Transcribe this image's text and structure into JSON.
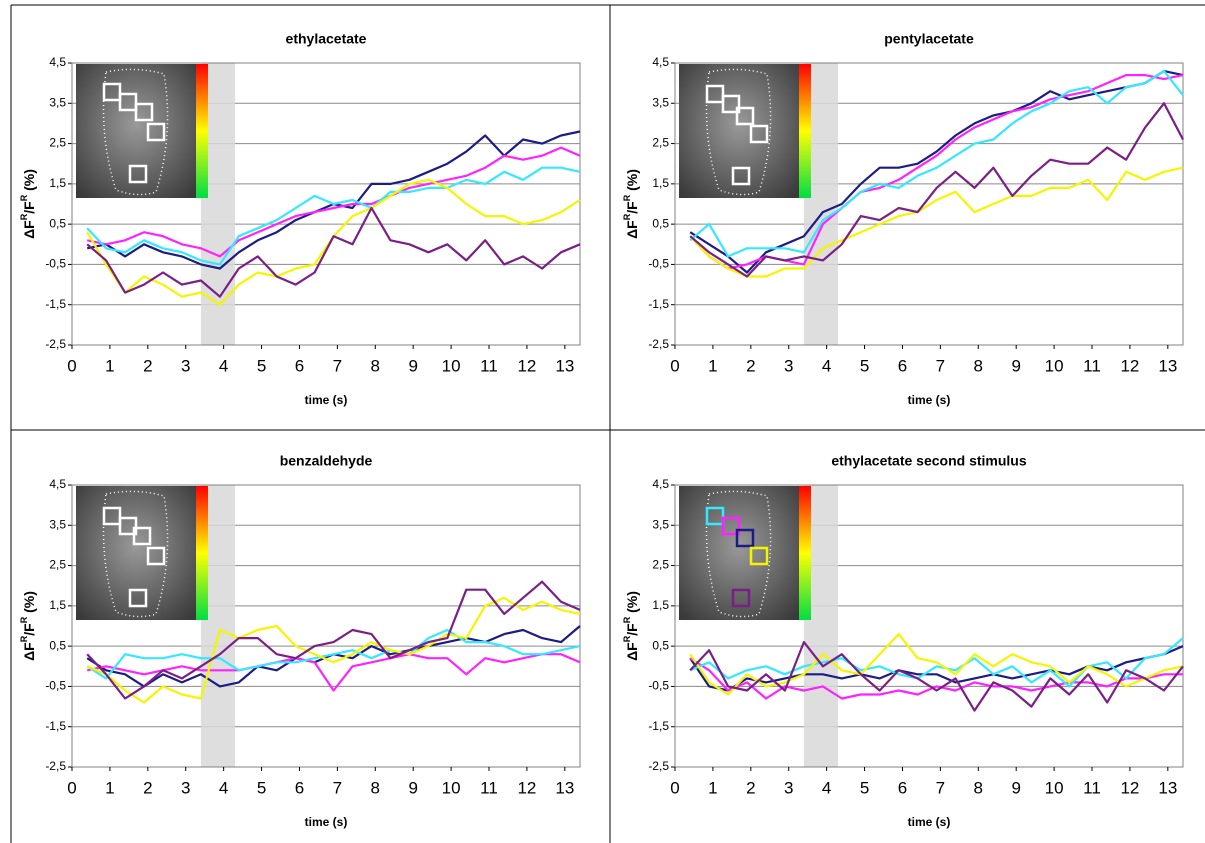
{
  "chart_data": [
    {
      "type": "line",
      "title": "ethylacetate",
      "xlabel": "time (s)",
      "ylabel": [
        "ΔF",
        "R",
        "/F",
        "R",
        " (%)"
      ],
      "xlim": [
        0,
        13.4
      ],
      "ylim": [
        -2.5,
        4.5
      ],
      "xticks": [
        0,
        1,
        2,
        3,
        4,
        5,
        6,
        7,
        8,
        9,
        10,
        11,
        12,
        13
      ],
      "yticks": [
        {
          "value": 4.5,
          "label": "4,5"
        },
        {
          "value": 3.5,
          "label": "3,5"
        },
        {
          "value": 2.5,
          "label": "2,5"
        },
        {
          "value": 1.5,
          "label": "1,5"
        },
        {
          "value": 0.5,
          "label": "0,5"
        },
        {
          "value": -0.5,
          "label": "-0,5"
        },
        {
          "value": -1.5,
          "label": "-1,5"
        },
        {
          "value": -2.5,
          "label": "-2,5"
        }
      ],
      "grid": true,
      "shade": [
        3.4,
        4.3
      ],
      "x": [
        0.4,
        0.9,
        1.4,
        1.9,
        2.4,
        2.9,
        3.4,
        3.9,
        4.4,
        4.9,
        5.4,
        5.9,
        6.4,
        6.9,
        7.4,
        7.9,
        8.4,
        8.9,
        9.4,
        9.9,
        10.4,
        10.9,
        11.4,
        11.9,
        12.4,
        12.9,
        13.4
      ],
      "series": [
        {
          "color": "#1c1c84",
          "values": [
            -0.1,
            0.0,
            -0.3,
            0.0,
            -0.2,
            -0.3,
            -0.5,
            -0.6,
            -0.2,
            0.1,
            0.3,
            0.6,
            0.8,
            1.0,
            0.9,
            1.5,
            1.5,
            1.6,
            1.8,
            2.0,
            2.3,
            2.7,
            2.2,
            2.6,
            2.5,
            2.7,
            2.8
          ]
        },
        {
          "color": "#ff22ff",
          "values": [
            0.1,
            0.0,
            0.1,
            0.3,
            0.2,
            0.0,
            -0.1,
            -0.3,
            0.1,
            0.3,
            0.5,
            0.7,
            0.8,
            0.9,
            1.0,
            1.0,
            1.2,
            1.4,
            1.5,
            1.6,
            1.7,
            1.9,
            2.2,
            2.1,
            2.2,
            2.4,
            2.2
          ]
        },
        {
          "color": "#33e8ff",
          "values": [
            0.4,
            -0.1,
            -0.2,
            0.1,
            -0.1,
            -0.2,
            -0.4,
            -0.5,
            0.2,
            0.4,
            0.6,
            0.9,
            1.2,
            1.0,
            1.1,
            0.9,
            1.3,
            1.3,
            1.4,
            1.4,
            1.6,
            1.5,
            1.8,
            1.6,
            1.9,
            1.9,
            1.8
          ]
        },
        {
          "color": "#f5f500",
          "values": [
            0.3,
            -0.5,
            -1.2,
            -0.8,
            -1.0,
            -1.3,
            -1.2,
            -1.5,
            -1.0,
            -0.7,
            -0.8,
            -0.6,
            -0.5,
            0.2,
            0.7,
            0.9,
            1.2,
            1.5,
            1.6,
            1.4,
            1.0,
            0.7,
            0.7,
            0.5,
            0.6,
            0.8,
            1.1
          ]
        },
        {
          "color": "#7a1f86",
          "values": [
            0.0,
            -0.4,
            -1.2,
            -1.0,
            -0.7,
            -1.0,
            -0.9,
            -1.3,
            -0.6,
            -0.3,
            -0.8,
            -1.0,
            -0.7,
            0.2,
            0.0,
            0.9,
            0.1,
            0.0,
            -0.2,
            0.0,
            -0.4,
            0.1,
            -0.5,
            -0.3,
            -0.6,
            -0.2,
            0.0
          ]
        }
      ]
    },
    {
      "type": "line",
      "title": "pentylacetate",
      "xlabel": "time (s)",
      "ylabel": [
        "ΔF",
        "R",
        "/F",
        "R",
        " (%)"
      ],
      "xlim": [
        0,
        13.4
      ],
      "ylim": [
        -2.5,
        4.5
      ],
      "xticks": [
        0,
        1,
        2,
        3,
        4,
        5,
        6,
        7,
        8,
        9,
        10,
        11,
        12,
        13
      ],
      "yticks": [
        {
          "value": 4.5,
          "label": "4,5"
        },
        {
          "value": 3.5,
          "label": "3,5"
        },
        {
          "value": 2.5,
          "label": "2,5"
        },
        {
          "value": 1.5,
          "label": "1,5"
        },
        {
          "value": 0.5,
          "label": "0,5"
        },
        {
          "value": -0.5,
          "label": "-0,5"
        },
        {
          "value": -1.5,
          "label": "-1,5"
        },
        {
          "value": -2.5,
          "label": "-2,5"
        }
      ],
      "grid": true,
      "shade": [
        3.4,
        4.3
      ],
      "x": [
        0.4,
        0.9,
        1.4,
        1.9,
        2.4,
        2.9,
        3.4,
        3.9,
        4.4,
        4.9,
        5.4,
        5.9,
        6.4,
        6.9,
        7.4,
        7.9,
        8.4,
        8.9,
        9.4,
        9.9,
        10.4,
        10.9,
        11.4,
        11.9,
        12.4,
        12.9,
        13.4
      ],
      "series": [
        {
          "color": "#1c1c84",
          "values": [
            0.3,
            0.0,
            -0.3,
            -0.7,
            -0.2,
            0.0,
            0.2,
            0.8,
            1.0,
            1.5,
            1.9,
            1.9,
            2.0,
            2.3,
            2.7,
            3.0,
            3.2,
            3.3,
            3.5,
            3.8,
            3.6,
            3.7,
            3.8,
            3.9,
            4.0,
            4.3,
            4.2
          ]
        },
        {
          "color": "#ff22ff",
          "values": [
            0.2,
            -0.3,
            -0.6,
            -0.5,
            -0.3,
            -0.4,
            -0.5,
            0.5,
            0.9,
            1.3,
            1.4,
            1.6,
            1.9,
            2.2,
            2.6,
            2.9,
            3.1,
            3.3,
            3.4,
            3.6,
            3.7,
            3.8,
            4.0,
            4.2,
            4.2,
            4.1,
            4.2
          ]
        },
        {
          "color": "#33e8ff",
          "values": [
            0.1,
            0.5,
            -0.3,
            -0.1,
            -0.1,
            -0.1,
            -0.2,
            0.6,
            0.9,
            1.3,
            1.5,
            1.4,
            1.7,
            1.9,
            2.2,
            2.5,
            2.6,
            3.0,
            3.3,
            3.5,
            3.8,
            3.9,
            3.5,
            3.9,
            4.0,
            4.3,
            3.7
          ]
        },
        {
          "color": "#f5f500",
          "values": [
            0.2,
            -0.3,
            -0.6,
            -0.8,
            -0.8,
            -0.6,
            -0.6,
            -0.1,
            0.1,
            0.3,
            0.5,
            0.7,
            0.8,
            1.1,
            1.3,
            0.8,
            1.0,
            1.2,
            1.2,
            1.4,
            1.4,
            1.6,
            1.1,
            1.8,
            1.6,
            1.8,
            1.9
          ]
        },
        {
          "color": "#7a1f86",
          "values": [
            0.2,
            -0.2,
            -0.5,
            -0.8,
            -0.3,
            -0.4,
            -0.3,
            -0.4,
            0.0,
            0.7,
            0.6,
            0.9,
            0.8,
            1.4,
            1.8,
            1.4,
            1.9,
            1.2,
            1.7,
            2.1,
            2.0,
            2.0,
            2.4,
            2.1,
            2.9,
            3.5,
            2.6
          ]
        }
      ]
    },
    {
      "type": "line",
      "title": "benzaldehyde",
      "xlabel": "time (s)",
      "ylabel": [
        "ΔF",
        "R",
        "/F",
        "R",
        " (%)"
      ],
      "xlim": [
        0,
        13.4
      ],
      "ylim": [
        -2.5,
        4.5
      ],
      "xticks": [
        0,
        1,
        2,
        3,
        4,
        5,
        6,
        7,
        8,
        9,
        10,
        11,
        12,
        13
      ],
      "yticks": [
        {
          "value": 4.5,
          "label": "4,5"
        },
        {
          "value": 3.5,
          "label": "3,5"
        },
        {
          "value": 2.5,
          "label": "2,5"
        },
        {
          "value": 1.5,
          "label": "1,5"
        },
        {
          "value": 0.5,
          "label": "0,5"
        },
        {
          "value": -0.5,
          "label": "-0,5"
        },
        {
          "value": -1.5,
          "label": "-1,5"
        },
        {
          "value": -2.5,
          "label": "-2,5"
        }
      ],
      "grid": true,
      "shade": [
        3.4,
        4.3
      ],
      "x": [
        0.4,
        0.9,
        1.4,
        1.9,
        2.4,
        2.9,
        3.4,
        3.9,
        4.4,
        4.9,
        5.4,
        5.9,
        6.4,
        6.9,
        7.4,
        7.9,
        8.4,
        8.9,
        9.4,
        9.9,
        10.4,
        10.9,
        11.4,
        11.9,
        12.4,
        12.9,
        13.4
      ],
      "series": [
        {
          "color": "#1c1c84",
          "values": [
            0.2,
            -0.1,
            -0.2,
            -0.5,
            -0.2,
            -0.4,
            -0.2,
            -0.5,
            -0.4,
            0.0,
            -0.1,
            0.2,
            0.1,
            0.3,
            0.2,
            0.5,
            0.3,
            0.4,
            0.5,
            0.6,
            0.7,
            0.6,
            0.8,
            0.9,
            0.7,
            0.6,
            1.0
          ]
        },
        {
          "color": "#ff22ff",
          "values": [
            -0.1,
            0.0,
            -0.1,
            -0.2,
            -0.1,
            0.0,
            -0.1,
            -0.1,
            -0.1,
            0.0,
            0.1,
            0.2,
            0.1,
            -0.6,
            0.0,
            0.1,
            0.2,
            0.3,
            0.2,
            0.2,
            -0.2,
            0.2,
            0.1,
            0.2,
            0.3,
            0.3,
            0.1
          ]
        },
        {
          "color": "#33e8ff",
          "values": [
            0.0,
            -0.3,
            0.3,
            0.2,
            0.2,
            0.3,
            0.2,
            0.2,
            -0.1,
            0.0,
            0.1,
            0.1,
            0.2,
            0.3,
            0.4,
            0.2,
            0.4,
            0.3,
            0.7,
            0.9,
            0.6,
            0.6,
            0.5,
            0.3,
            0.3,
            0.4,
            0.5
          ]
        },
        {
          "color": "#f5f500",
          "values": [
            0.0,
            -0.2,
            -0.6,
            -0.9,
            -0.5,
            -0.7,
            -0.8,
            0.9,
            0.7,
            0.9,
            1.0,
            0.5,
            0.3,
            0.1,
            0.3,
            0.6,
            0.4,
            0.3,
            0.5,
            0.8,
            0.7,
            1.5,
            1.7,
            1.4,
            1.6,
            1.4,
            1.3
          ]
        },
        {
          "color": "#7a1f86",
          "values": [
            0.3,
            -0.2,
            -0.8,
            -0.5,
            -0.1,
            -0.3,
            0.0,
            0.3,
            0.7,
            0.7,
            0.3,
            0.2,
            0.5,
            0.6,
            0.9,
            0.8,
            0.2,
            0.4,
            0.6,
            0.7,
            1.9,
            1.9,
            1.3,
            1.7,
            2.1,
            1.6,
            1.4
          ]
        }
      ]
    },
    {
      "type": "line",
      "title": "ethylacetate second stimulus",
      "xlabel": "time (s)",
      "ylabel": [
        "ΔF",
        "R",
        "/F",
        "R",
        " (%)"
      ],
      "xlim": [
        0,
        13.4
      ],
      "ylim": [
        -2.5,
        4.5
      ],
      "xticks": [
        0,
        1,
        2,
        3,
        4,
        5,
        6,
        7,
        8,
        9,
        10,
        11,
        12,
        13
      ],
      "yticks": [
        {
          "value": 4.5,
          "label": "4,5"
        },
        {
          "value": 3.5,
          "label": "3,5"
        },
        {
          "value": 2.5,
          "label": "2,5"
        },
        {
          "value": 1.5,
          "label": "1,5"
        },
        {
          "value": 0.5,
          "label": "0,5"
        },
        {
          "value": -0.5,
          "label": "-0,5"
        },
        {
          "value": -1.5,
          "label": "-1,5"
        },
        {
          "value": -2.5,
          "label": "-2,5"
        }
      ],
      "grid": true,
      "shade": [
        3.4,
        4.3
      ],
      "x": [
        0.4,
        0.9,
        1.4,
        1.9,
        2.4,
        2.9,
        3.4,
        3.9,
        4.4,
        4.9,
        5.4,
        5.9,
        6.4,
        6.9,
        7.4,
        7.9,
        8.4,
        8.9,
        9.4,
        9.9,
        10.4,
        10.9,
        11.4,
        11.9,
        12.4,
        12.9,
        13.4
      ],
      "series": [
        {
          "color": "#1c1c84",
          "values": [
            0.2,
            -0.5,
            -0.6,
            -0.3,
            -0.4,
            -0.3,
            -0.2,
            -0.2,
            -0.3,
            -0.2,
            -0.3,
            -0.1,
            -0.2,
            -0.2,
            -0.4,
            -0.3,
            -0.2,
            -0.3,
            -0.2,
            -0.1,
            -0.2,
            0.0,
            -0.1,
            0.1,
            0.2,
            0.3,
            0.5
          ]
        },
        {
          "color": "#ff22ff",
          "values": [
            0.2,
            -0.1,
            -0.6,
            -0.4,
            -0.8,
            -0.5,
            -0.6,
            -0.5,
            -0.8,
            -0.7,
            -0.7,
            -0.6,
            -0.7,
            -0.5,
            -0.6,
            -0.4,
            -0.5,
            -0.5,
            -0.6,
            -0.5,
            -0.4,
            -0.4,
            -0.5,
            -0.3,
            -0.3,
            -0.2,
            -0.2
          ]
        },
        {
          "color": "#33e8ff",
          "values": [
            -0.1,
            0.1,
            -0.3,
            -0.1,
            0.0,
            -0.2,
            0.0,
            0.1,
            0.2,
            -0.1,
            0.0,
            -0.2,
            -0.3,
            0.0,
            -0.1,
            0.2,
            -0.2,
            0.0,
            -0.4,
            -0.1,
            -0.5,
            0.0,
            0.1,
            -0.3,
            0.2,
            0.3,
            0.7
          ]
        },
        {
          "color": "#f5f500",
          "values": [
            0.3,
            -0.4,
            -0.7,
            -0.2,
            -0.5,
            -0.4,
            -0.2,
            0.3,
            -0.1,
            -0.2,
            0.3,
            0.8,
            0.2,
            0.1,
            -0.2,
            0.3,
            0.0,
            0.3,
            0.1,
            0.0,
            -0.4,
            0.0,
            -0.2,
            -0.5,
            -0.3,
            -0.1,
            0.0
          ]
        },
        {
          "color": "#7a1f86",
          "values": [
            -0.1,
            0.4,
            -0.5,
            -0.6,
            -0.2,
            -0.6,
            0.6,
            0.0,
            0.3,
            -0.2,
            -0.6,
            -0.1,
            -0.3,
            -0.6,
            -0.3,
            -1.1,
            -0.4,
            -0.6,
            -1.0,
            -0.3,
            -0.7,
            -0.2,
            -0.9,
            -0.1,
            -0.3,
            -0.6,
            0.0
          ]
        }
      ]
    }
  ]
}
